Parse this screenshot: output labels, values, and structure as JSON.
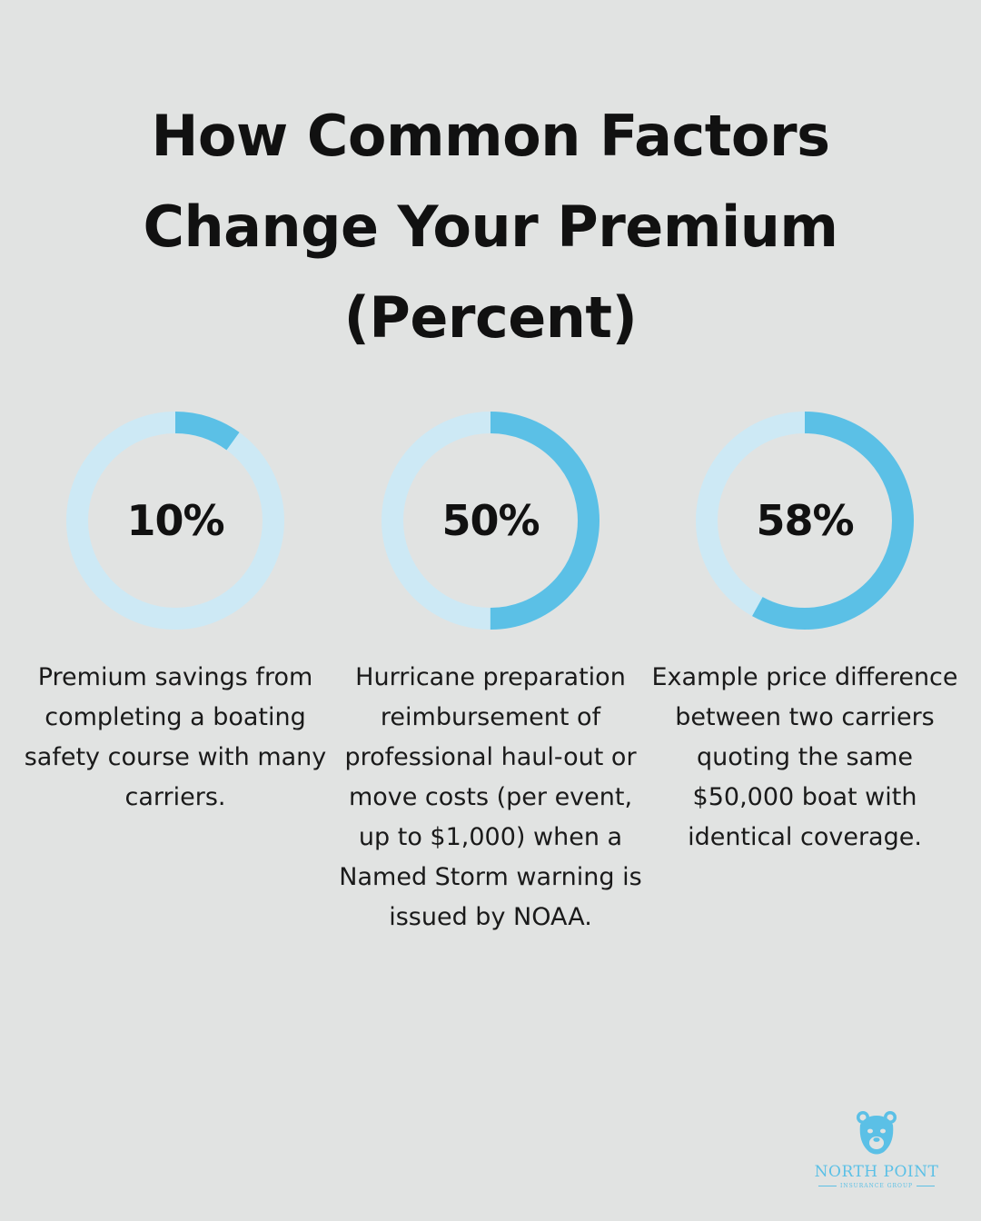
{
  "title": "How Common Factors Change Your Premium (Percent)",
  "colors": {
    "background": "#e1e3e2",
    "ring_track": "#cde9f5",
    "ring_fill": "#5bc0e6",
    "text": "#111111"
  },
  "chart_data": {
    "type": "donut",
    "title": "How Common Factors Change Your Premium (Percent)",
    "unit": "%",
    "items": [
      {
        "value": 10,
        "label": "10%",
        "description": "Premium savings from completing a boating safety course with many carriers."
      },
      {
        "value": 50,
        "label": "50%",
        "description": "Hurricane preparation reimbursement of professional haul-out or move costs (per event, up to $1,000) when a Named Storm warning is issued by NOAA."
      },
      {
        "value": 58,
        "label": "58%",
        "description": "Example price difference between two carriers quoting the same $50,000 boat with identical coverage."
      }
    ]
  },
  "logo": {
    "name": "NORTH POINT",
    "subtitle": "INSURANCE GROUP",
    "icon": "bear-icon"
  }
}
